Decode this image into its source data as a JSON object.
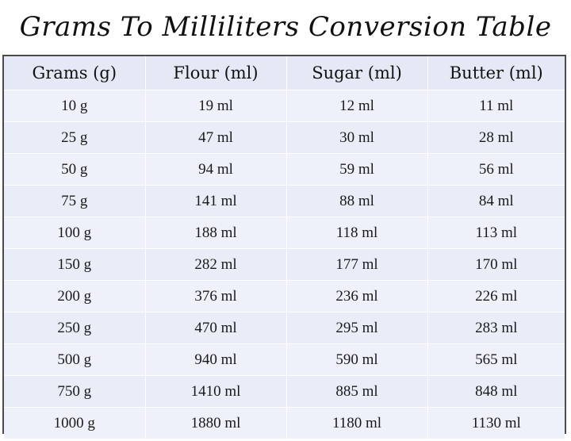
{
  "title": "Grams To Milliliters Conversion Table",
  "table": {
    "headers": [
      "Grams (g)",
      "Flour (ml)",
      "Sugar (ml)",
      "Butter (ml)"
    ],
    "rows": [
      [
        "10 g",
        "19 ml",
        "12 ml",
        "11 ml"
      ],
      [
        "25 g",
        "47 ml",
        "30 ml",
        "28 ml"
      ],
      [
        "50 g",
        "94 ml",
        "59 ml",
        "56 ml"
      ],
      [
        "75 g",
        "141 ml",
        "88 ml",
        "84 ml"
      ],
      [
        "100 g",
        "188 ml",
        "118 ml",
        "113 ml"
      ],
      [
        "150 g",
        "282 ml",
        "177 ml",
        "170 ml"
      ],
      [
        "200 g",
        "376 ml",
        "236 ml",
        "226 ml"
      ],
      [
        "250 g",
        "470 ml",
        "295 ml",
        "283 ml"
      ],
      [
        "500 g",
        "940 ml",
        "590 ml",
        "565 ml"
      ],
      [
        "750 g",
        "1410 ml",
        "885 ml",
        "848 ml"
      ],
      [
        "1000 g",
        "1880 ml",
        "1180 ml",
        "1130 ml"
      ]
    ]
  },
  "colors": {
    "table_background": "#eef1f9",
    "table_border": "#4b4b4b",
    "text": "#111111"
  }
}
